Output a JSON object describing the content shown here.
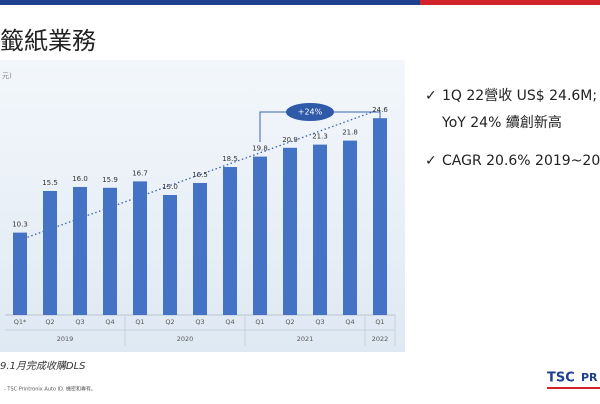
{
  "slide": {
    "title": "籤紙業務",
    "bullets": [
      [
        "1Q 22營收 US$ 24.6M;",
        "YoY 24% 續創新高"
      ],
      [
        "CAGR 20.6%  2019~20"
      ]
    ],
    "footnote": "9.1月完成收購DLS",
    "copyright": "- TSC Printronix Auto ID. 機密和專有。",
    "logo": [
      "TSC",
      "PR"
    ]
  },
  "chart_data": {
    "type": "bar",
    "y_label": "元)",
    "categories": [
      "Q1*",
      "Q2",
      "Q3",
      "Q4",
      "Q1",
      "Q2",
      "Q3",
      "Q4",
      "Q1",
      "Q2",
      "Q3",
      "Q4",
      "Q1"
    ],
    "category_groups": [
      "2019",
      "2019",
      "2019",
      "2019",
      "2020",
      "2020",
      "2020",
      "2020",
      "2021",
      "2021",
      "2021",
      "2021",
      "2022"
    ],
    "values": [
      10.3,
      15.5,
      16.0,
      15.9,
      16.7,
      15.0,
      16.5,
      18.5,
      19.8,
      20.9,
      21.3,
      21.8,
      24.6
    ],
    "value_labels": [
      "10.3",
      "15.5",
      "16.0",
      "15.9",
      "16.7",
      "15.0",
      "16.5",
      "18.5",
      "19.8",
      "20.9",
      "21.3",
      "21.8",
      "24.6"
    ],
    "color": "#4472c4",
    "ylim": [
      0,
      25
    ],
    "annotation": "+24%"
  }
}
